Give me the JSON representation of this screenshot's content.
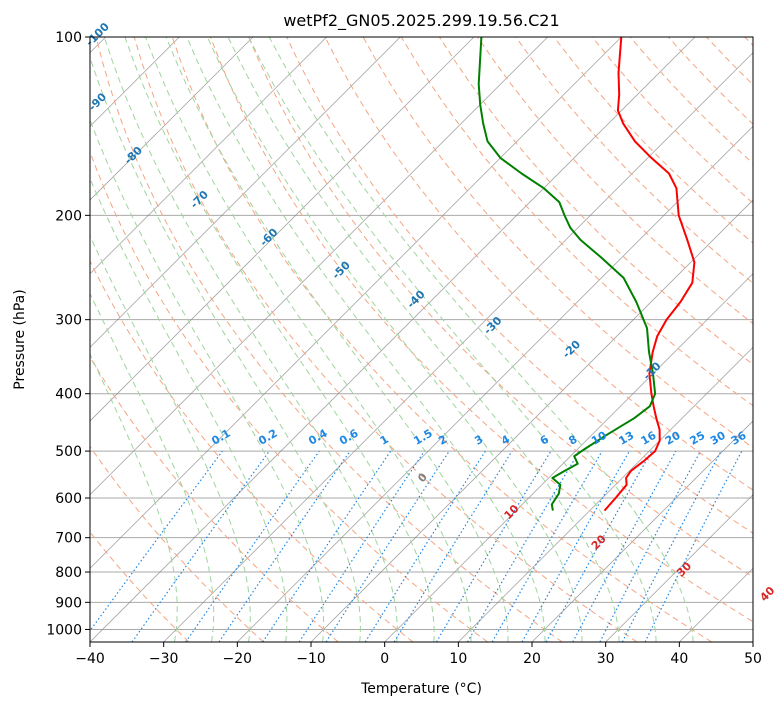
{
  "chart_data": {
    "type": "line",
    "title": "wetPf2_GN05.2025.299.19.56.C21",
    "xlabel": "Temperature (°C)",
    "ylabel": "Pressure (hPa)",
    "xlim": [
      -40,
      50
    ],
    "ylim": [
      1050,
      100
    ],
    "x_ticks": [
      -40,
      -30,
      -20,
      -10,
      0,
      10,
      20,
      30,
      40,
      50
    ],
    "y_ticks": [
      1000,
      900,
      800,
      700,
      600,
      500,
      400,
      300,
      200,
      100
    ],
    "grid": true,
    "series": [
      {
        "name": "Temperature",
        "color": "#ff0000",
        "points": [
          {
            "p": 630,
            "t": 12.0
          },
          {
            "p": 600,
            "t": 11.8
          },
          {
            "p": 570,
            "t": 11.5
          },
          {
            "p": 555,
            "t": 10.5
          },
          {
            "p": 540,
            "t": 10.2
          },
          {
            "p": 520,
            "t": 10.6
          },
          {
            "p": 500,
            "t": 10.8
          },
          {
            "p": 480,
            "t": 10.0
          },
          {
            "p": 460,
            "t": 8.5
          },
          {
            "p": 440,
            "t": 6.5
          },
          {
            "p": 420,
            "t": 4.5
          },
          {
            "p": 400,
            "t": 2.5
          },
          {
            "p": 370,
            "t": -0.5
          },
          {
            "p": 340,
            "t": -3.0
          },
          {
            "p": 320,
            "t": -4.5
          },
          {
            "p": 300,
            "t": -5.5
          },
          {
            "p": 280,
            "t": -6.0
          },
          {
            "p": 260,
            "t": -7.0
          },
          {
            "p": 240,
            "t": -9.5
          },
          {
            "p": 220,
            "t": -13.5
          },
          {
            "p": 200,
            "t": -18.0
          },
          {
            "p": 180,
            "t": -22.0
          },
          {
            "p": 170,
            "t": -25.0
          },
          {
            "p": 160,
            "t": -29.5
          },
          {
            "p": 150,
            "t": -34.0
          },
          {
            "p": 140,
            "t": -38.0
          },
          {
            "p": 133,
            "t": -40.5
          },
          {
            "p": 125,
            "t": -42.5
          },
          {
            "p": 115,
            "t": -45.5
          },
          {
            "p": 100,
            "t": -50.0
          }
        ]
      },
      {
        "name": "Dewpoint",
        "color": "#008000",
        "points": [
          {
            "p": 630,
            "t": 5.0
          },
          {
            "p": 615,
            "t": 4.0
          },
          {
            "p": 590,
            "t": 3.5
          },
          {
            "p": 570,
            "t": 2.5
          },
          {
            "p": 555,
            "t": 0.5
          },
          {
            "p": 540,
            "t": 1.2
          },
          {
            "p": 525,
            "t": 2.0
          },
          {
            "p": 510,
            "t": 0.5
          },
          {
            "p": 495,
            "t": 1.0
          },
          {
            "p": 470,
            "t": 2.0
          },
          {
            "p": 440,
            "t": 3.5
          },
          {
            "p": 420,
            "t": 4.0
          },
          {
            "p": 400,
            "t": 3.0
          },
          {
            "p": 370,
            "t": 0.0
          },
          {
            "p": 340,
            "t": -3.5
          },
          {
            "p": 310,
            "t": -7.0
          },
          {
            "p": 280,
            "t": -12.0
          },
          {
            "p": 255,
            "t": -17.0
          },
          {
            "p": 235,
            "t": -23.0
          },
          {
            "p": 220,
            "t": -28.0
          },
          {
            "p": 210,
            "t": -31.0
          },
          {
            "p": 200,
            "t": -33.5
          },
          {
            "p": 190,
            "t": -36.0
          },
          {
            "p": 180,
            "t": -40.0
          },
          {
            "p": 170,
            "t": -45.0
          },
          {
            "p": 160,
            "t": -50.0
          },
          {
            "p": 150,
            "t": -54.0
          },
          {
            "p": 140,
            "t": -57.0
          },
          {
            "p": 130,
            "t": -60.0
          },
          {
            "p": 120,
            "t": -63.0
          },
          {
            "p": 100,
            "t": -69.0
          }
        ]
      }
    ],
    "mixing_ratio_labels": [
      "0.1",
      "0.2",
      "0.4",
      "0.6",
      "1",
      "1.5",
      "2",
      "3",
      "4",
      "6",
      "8",
      "10",
      "13",
      "16",
      "20",
      "25",
      "30",
      "36"
    ],
    "dry_adiabat_labels": [
      "-100",
      "-90",
      "-80",
      "-70",
      "-60",
      "-50",
      "-40",
      "-30",
      "-20",
      "-10"
    ],
    "moist_adiabat_labels": [
      "0",
      "10",
      "20",
      "30",
      "40"
    ]
  },
  "colors": {
    "isotherm": "#7f7f7f",
    "isobar": "#a9a9a9",
    "dry_adiabat": "#f4a582",
    "moist_adiabat": "#9fd49f",
    "mixing_ratio": "#1e88e5",
    "dry_label": "#1f77b4",
    "moist_label": "#d62728",
    "zero_label": "#808080"
  }
}
